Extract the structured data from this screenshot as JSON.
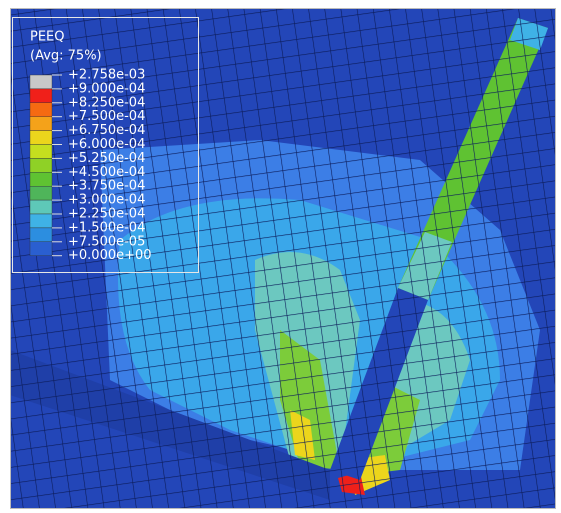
{
  "legend": {
    "title": "PEEQ",
    "subtitle": "(Avg: 75%)",
    "labels": [
      "+2.758e-03",
      "+9.000e-04",
      "+8.250e-04",
      "+7.500e-04",
      "+6.750e-04",
      "+6.000e-04",
      "+5.250e-04",
      "+4.500e-04",
      "+3.750e-04",
      "+3.000e-04",
      "+2.250e-04",
      "+1.500e-04",
      "+7.500e-05",
      "+0.000e+00"
    ],
    "colors": [
      "#c8c8c8",
      "#f0201a",
      "#f56a12",
      "#f4a21a",
      "#ecd51c",
      "#c5df1f",
      "#8fd126",
      "#5fc232",
      "#4fb55a",
      "#5ec8b8",
      "#3fb2e6",
      "#2c8ee0",
      "#2a5fd0"
    ]
  }
}
